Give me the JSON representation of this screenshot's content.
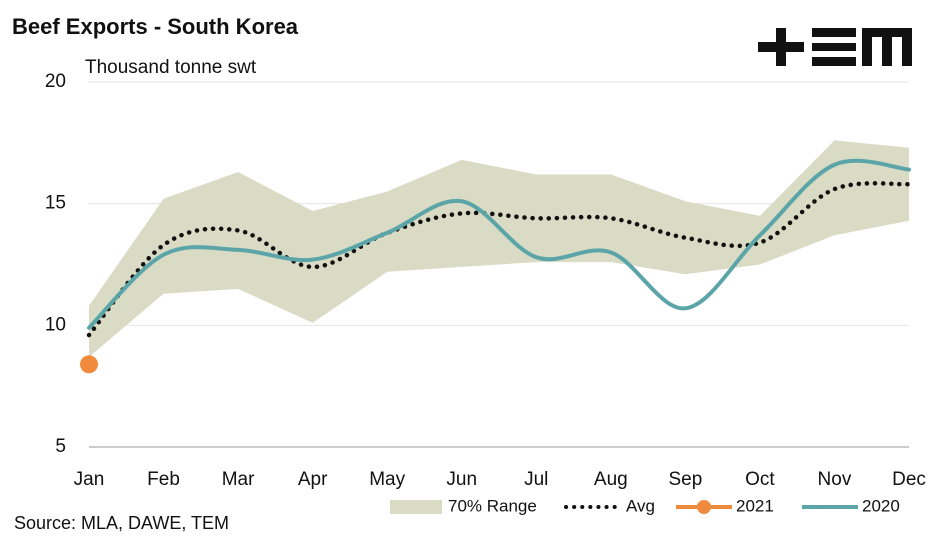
{
  "chart_data": {
    "type": "line",
    "title": "Beef Exports - South Korea",
    "subtitle": "Thousand tonne swt",
    "source": "Source: MLA, DAWE, TEM",
    "categories": [
      "Jan",
      "Feb",
      "Mar",
      "Apr",
      "May",
      "Jun",
      "Jul",
      "Aug",
      "Sep",
      "Oct",
      "Nov",
      "Dec"
    ],
    "ylim": [
      5,
      20
    ],
    "yticks": [
      5,
      10,
      15,
      20
    ],
    "grid": true,
    "legend": "bottom",
    "series": [
      {
        "name": "70% Range",
        "color": "#d9dbc5",
        "values": [
          10.8,
          15.2,
          16.3,
          14.7,
          15.5,
          16.8,
          16.2,
          16.2,
          15.1,
          14.5,
          17.6,
          17.3
        ],
        "lower": [
          8.7,
          11.3,
          11.5,
          10.1,
          12.2,
          12.4,
          12.6,
          12.6,
          12.1,
          12.5,
          13.7,
          14.3
        ]
      },
      {
        "name": "Avg",
        "color": "#111111",
        "values": [
          9.6,
          13.3,
          13.9,
          12.4,
          13.8,
          14.6,
          14.4,
          14.4,
          13.6,
          13.4,
          15.6,
          15.8
        ]
      },
      {
        "name": "2021",
        "color": "#f08a3c",
        "values": [
          8.4,
          null,
          null,
          null,
          null,
          null,
          null,
          null,
          null,
          null,
          null,
          null
        ]
      },
      {
        "name": "2020",
        "color": "#5ba5a8",
        "values": [
          9.9,
          12.9,
          13.1,
          12.7,
          13.8,
          15.1,
          12.8,
          13.0,
          10.7,
          13.7,
          16.6,
          16.4
        ]
      }
    ]
  }
}
